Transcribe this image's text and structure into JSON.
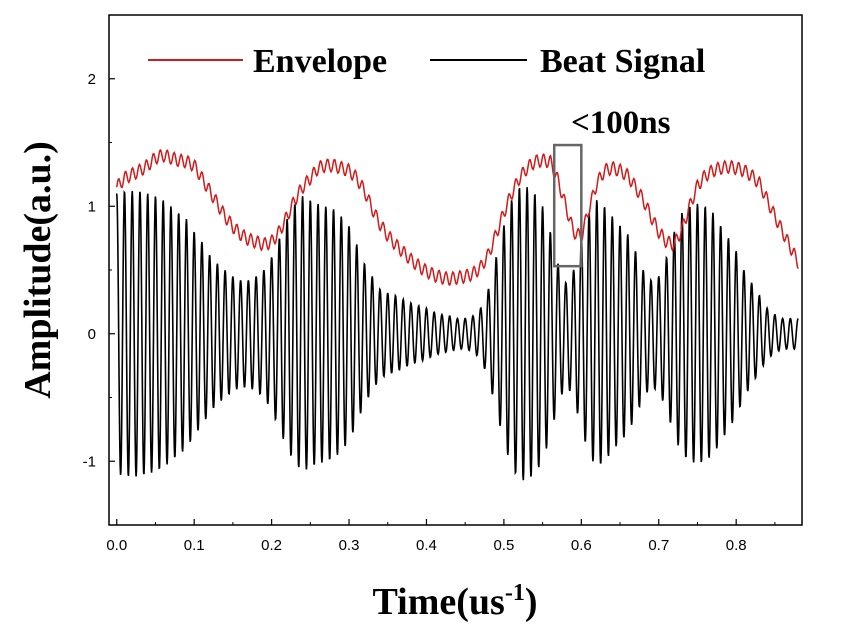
{
  "chart_data": {
    "type": "line",
    "xlabel": "Time(us",
    "xlabel_sup": "-1",
    "xlabel_close": ")",
    "ylabel": "Amplitude(a.u.)",
    "xlim": [
      -0.01,
      0.885
    ],
    "ylim": [
      -1.5,
      2.5
    ],
    "x_ticks": [
      0.0,
      0.1,
      0.2,
      0.3,
      0.4,
      0.5,
      0.6,
      0.7,
      0.8
    ],
    "x_tick_labels": [
      "0.0",
      "0.1",
      "0.2",
      "0.3",
      "0.4",
      "0.5",
      "0.6",
      "0.7",
      "0.8"
    ],
    "y_ticks": [
      -1,
      0,
      1,
      2
    ],
    "y_tick_labels": [
      "-1",
      "0",
      "1",
      "2"
    ],
    "grid": false,
    "legend_position": "top",
    "series": [
      {
        "name": "Envelope",
        "color": "#d11a1a",
        "x": [
          0.0,
          0.01,
          0.02,
          0.03,
          0.04,
          0.05,
          0.06,
          0.07,
          0.08,
          0.09,
          0.1,
          0.11,
          0.12,
          0.13,
          0.14,
          0.15,
          0.16,
          0.17,
          0.18,
          0.19,
          0.2,
          0.21,
          0.22,
          0.23,
          0.24,
          0.25,
          0.26,
          0.27,
          0.28,
          0.29,
          0.3,
          0.31,
          0.32,
          0.33,
          0.34,
          0.35,
          0.36,
          0.37,
          0.38,
          0.39,
          0.4,
          0.41,
          0.42,
          0.43,
          0.44,
          0.45,
          0.46,
          0.47,
          0.48,
          0.49,
          0.5,
          0.51,
          0.52,
          0.53,
          0.54,
          0.55,
          0.56,
          0.57,
          0.58,
          0.59,
          0.6,
          0.61,
          0.62,
          0.63,
          0.64,
          0.65,
          0.66,
          0.67,
          0.68,
          0.69,
          0.7,
          0.71,
          0.72,
          0.73,
          0.74,
          0.75,
          0.76,
          0.77,
          0.78,
          0.79,
          0.8,
          0.81,
          0.82,
          0.83,
          0.84,
          0.85,
          0.86,
          0.87,
          0.88
        ],
        "values": [
          1.15,
          1.22,
          1.25,
          1.28,
          1.32,
          1.38,
          1.4,
          1.38,
          1.36,
          1.35,
          1.32,
          1.22,
          1.12,
          1.02,
          0.92,
          0.84,
          0.78,
          0.74,
          0.72,
          0.7,
          0.72,
          0.8,
          0.92,
          1.05,
          1.15,
          1.22,
          1.3,
          1.32,
          1.32,
          1.3,
          1.28,
          1.22,
          1.12,
          0.98,
          0.86,
          0.77,
          0.7,
          0.64,
          0.58,
          0.53,
          0.49,
          0.46,
          0.44,
          0.43,
          0.44,
          0.45,
          0.47,
          0.52,
          0.62,
          0.78,
          0.95,
          1.1,
          1.22,
          1.3,
          1.35,
          1.36,
          1.35,
          1.2,
          1.0,
          0.8,
          0.76,
          0.98,
          1.18,
          1.28,
          1.3,
          1.28,
          1.24,
          1.15,
          1.05,
          0.92,
          0.8,
          0.72,
          0.7,
          0.82,
          1.0,
          1.16,
          1.24,
          1.28,
          1.3,
          1.31,
          1.3,
          1.28,
          1.24,
          1.18,
          1.05,
          0.92,
          0.8,
          0.68,
          0.56
        ]
      },
      {
        "name": "Beat Signal",
        "color": "#000000",
        "sample_x": [
          0.0,
          0.01,
          0.02,
          0.03,
          0.04,
          0.05,
          0.06,
          0.07,
          0.08,
          0.09,
          0.1,
          0.11,
          0.12,
          0.13,
          0.14,
          0.15,
          0.16,
          0.17,
          0.18,
          0.19,
          0.2,
          0.21,
          0.22,
          0.23,
          0.24,
          0.25,
          0.26,
          0.27,
          0.28,
          0.29,
          0.3,
          0.31,
          0.32,
          0.33,
          0.34,
          0.35,
          0.36,
          0.37,
          0.38,
          0.39,
          0.4,
          0.41,
          0.42,
          0.43,
          0.44,
          0.45,
          0.46,
          0.47,
          0.48,
          0.49,
          0.5,
          0.51,
          0.52,
          0.53,
          0.54,
          0.55,
          0.56,
          0.57,
          0.58,
          0.59,
          0.6,
          0.61,
          0.62,
          0.63,
          0.64,
          0.65,
          0.66,
          0.67,
          0.68,
          0.69,
          0.7,
          0.71,
          0.72,
          0.73,
          0.74,
          0.75,
          0.76,
          0.77,
          0.78,
          0.79,
          0.8,
          0.81,
          0.82,
          0.83,
          0.84,
          0.85,
          0.86,
          0.87,
          0.88
        ],
        "amplitude": [
          1.1,
          1.12,
          1.12,
          1.12,
          1.1,
          1.08,
          1.05,
          1.0,
          0.95,
          0.9,
          0.8,
          0.72,
          0.62,
          0.55,
          0.5,
          0.45,
          0.42,
          0.42,
          0.45,
          0.5,
          0.6,
          0.75,
          0.9,
          1.02,
          1.08,
          1.05,
          1.02,
          1.0,
          0.98,
          0.92,
          0.85,
          0.7,
          0.55,
          0.45,
          0.35,
          0.32,
          0.3,
          0.27,
          0.24,
          0.22,
          0.2,
          0.17,
          0.15,
          0.14,
          0.12,
          0.12,
          0.14,
          0.2,
          0.35,
          0.6,
          0.85,
          1.05,
          1.15,
          1.15,
          1.1,
          1.0,
          0.8,
          0.55,
          0.4,
          0.5,
          0.75,
          0.95,
          1.05,
          1.0,
          0.92,
          0.85,
          0.78,
          0.65,
          0.5,
          0.42,
          0.45,
          0.6,
          0.8,
          0.95,
          1.0,
          1.02,
          1.0,
          0.95,
          0.85,
          0.75,
          0.65,
          0.5,
          0.4,
          0.3,
          0.2,
          0.15,
          0.12,
          0.12,
          0.12
        ],
        "oscillation_period": 0.01
      }
    ],
    "annotations": [
      {
        "text": "<100ns",
        "box_x": [
          0.565,
          0.6
        ],
        "box_y": [
          0.53,
          1.48
        ],
        "box_color": "#666666"
      }
    ]
  }
}
